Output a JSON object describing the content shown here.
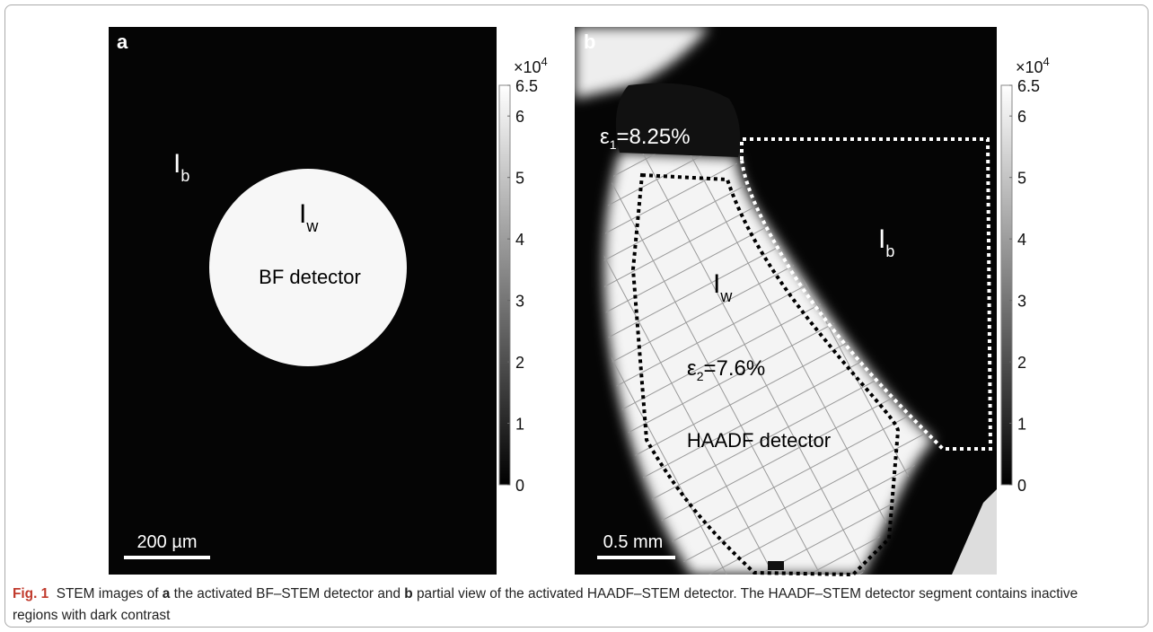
{
  "panels": [
    {
      "letter": "a",
      "labels": [
        {
          "main": "I",
          "sub": "b"
        },
        {
          "main": "I",
          "sub": "w"
        },
        {
          "text": "BF detector"
        }
      ],
      "scale_bar": "200 µm",
      "colorbar": {
        "multiplier": "×10",
        "exponent": "4",
        "lim": [
          0,
          6.5
        ],
        "ticks": [
          0,
          1,
          2,
          3,
          4,
          5,
          6,
          6.5
        ]
      }
    },
    {
      "letter": "b",
      "labels": [
        {
          "main": "ε",
          "sub": "1",
          "rest": "=8.25%"
        },
        {
          "main": "I",
          "sub": "b"
        },
        {
          "main": "I",
          "sub": "w"
        },
        {
          "main": "ε",
          "sub": "2",
          "rest": "=7.6%"
        },
        {
          "text": "HAADF detector"
        }
      ],
      "scale_bar": "0.5 mm",
      "colorbar": {
        "multiplier": "×10",
        "exponent": "4",
        "lim": [
          0,
          6.5
        ],
        "ticks": [
          0,
          1,
          2,
          3,
          4,
          5,
          6,
          6.5
        ]
      }
    }
  ],
  "caption": {
    "segments": [
      {
        "text": "Fig. 1",
        "bold": true
      },
      {
        "text": "  STEM images of ",
        "bold": false
      },
      {
        "text": "a",
        "bold": true
      },
      {
        "text": " the activated BF–STEM detector and ",
        "bold": false
      },
      {
        "text": "b",
        "bold": true
      },
      {
        "text": " partial view of the activated HAADF–STEM detector. The HAADF–STEM detector segment contains inactive regions with dark contrast",
        "bold": false
      }
    ]
  }
}
